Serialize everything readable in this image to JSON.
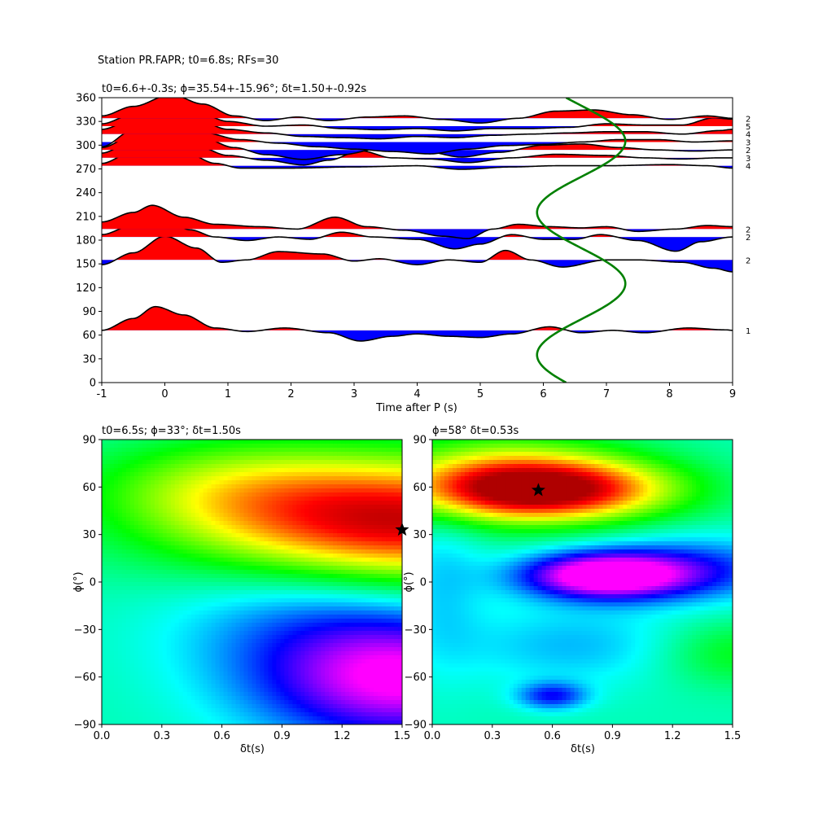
{
  "figure_title": "Station PR.FAPR; t0=6.8s; RFs=30",
  "chart_data": [
    {
      "type": "line",
      "title": "t0=6.6+-0.3s; ϕ=35.54+-15.96°; δt=1.50+-0.92s",
      "xlabel": "Time after P (s)",
      "ylabel": "",
      "xlim": [
        -1,
        9
      ],
      "ylim": [
        0,
        360
      ],
      "xticks": [
        "-1",
        "0",
        "1",
        "2",
        "3",
        "4",
        "5",
        "6",
        "7",
        "8",
        "9"
      ],
      "yticks": [
        "0",
        "30",
        "60",
        "90",
        "120",
        "150",
        "180",
        "210",
        "240",
        "270",
        "300",
        "330",
        "360"
      ],
      "grid": false,
      "trace_scale_deg": 30,
      "traces": [
        {
          "baz": 66,
          "count": "1",
          "wave": [
            [
              -1,
              0
            ],
            [
              -0.5,
              0.5
            ],
            [
              -0.15,
              1.0
            ],
            [
              0.3,
              0.65
            ],
            [
              0.8,
              0.1
            ],
            [
              1.3,
              -0.05
            ],
            [
              1.9,
              0.1
            ],
            [
              2.6,
              -0.1
            ],
            [
              3.1,
              -0.45
            ],
            [
              3.6,
              -0.25
            ],
            [
              4.0,
              -0.15
            ],
            [
              4.5,
              -0.25
            ],
            [
              5.0,
              -0.3
            ],
            [
              5.5,
              -0.15
            ],
            [
              6.1,
              0.15
            ],
            [
              6.6,
              -0.1
            ],
            [
              7.1,
              0.0
            ],
            [
              7.6,
              -0.1
            ],
            [
              8.3,
              0.1
            ],
            [
              8.9,
              0.02
            ],
            [
              9,
              0
            ]
          ]
        },
        {
          "baz": 155,
          "count": "2",
          "wave": [
            [
              -1,
              -0.2
            ],
            [
              -0.5,
              0.3
            ],
            [
              0.0,
              1.0
            ],
            [
              0.5,
              0.5
            ],
            [
              0.9,
              -0.1
            ],
            [
              1.3,
              0.0
            ],
            [
              1.8,
              0.35
            ],
            [
              2.5,
              0.25
            ],
            [
              3.0,
              -0.05
            ],
            [
              3.4,
              0.05
            ],
            [
              4.0,
              -0.2
            ],
            [
              4.5,
              0.0
            ],
            [
              5.0,
              -0.1
            ],
            [
              5.4,
              0.4
            ],
            [
              5.8,
              0.0
            ],
            [
              6.3,
              -0.3
            ],
            [
              7.0,
              0.0
            ],
            [
              7.5,
              0.0
            ],
            [
              8.2,
              -0.1
            ],
            [
              8.7,
              -0.35
            ],
            [
              9,
              -0.5
            ]
          ]
        },
        {
          "baz": 184,
          "count": "2",
          "wave": [
            [
              -1,
              0.1
            ],
            [
              -0.5,
              0.5
            ],
            [
              -0.1,
              1.0
            ],
            [
              0.4,
              0.3
            ],
            [
              0.8,
              0.0
            ],
            [
              1.3,
              -0.15
            ],
            [
              1.8,
              0.0
            ],
            [
              2.3,
              -0.1
            ],
            [
              2.8,
              0.2
            ],
            [
              3.3,
              0.0
            ],
            [
              4.0,
              -0.1
            ],
            [
              4.6,
              -0.5
            ],
            [
              5.0,
              -0.3
            ],
            [
              5.5,
              0.1
            ],
            [
              6.0,
              -0.1
            ],
            [
              6.5,
              -0.1
            ],
            [
              6.9,
              0.1
            ],
            [
              7.5,
              -0.15
            ],
            [
              8.1,
              -0.6
            ],
            [
              8.5,
              -0.2
            ],
            [
              9,
              0
            ]
          ]
        },
        {
          "baz": 194,
          "count": "2",
          "wave": [
            [
              -1,
              0.3
            ],
            [
              -0.5,
              0.7
            ],
            [
              -0.2,
              1.0
            ],
            [
              0.3,
              0.5
            ],
            [
              0.8,
              0.2
            ],
            [
              1.5,
              0.1
            ],
            [
              2.1,
              0.0
            ],
            [
              2.7,
              0.5
            ],
            [
              3.2,
              0.1
            ],
            [
              3.8,
              -0.05
            ],
            [
              4.4,
              -0.3
            ],
            [
              4.8,
              -0.4
            ],
            [
              5.2,
              0.0
            ],
            [
              5.6,
              0.2
            ],
            [
              6.1,
              0.1
            ],
            [
              6.6,
              0.05
            ],
            [
              7.0,
              0.1
            ],
            [
              7.5,
              -0.1
            ],
            [
              8.1,
              0.0
            ],
            [
              8.6,
              0.15
            ],
            [
              9,
              0.1
            ]
          ]
        },
        {
          "baz": 274,
          "count": "4",
          "wave": [
            [
              -1,
              0.1
            ],
            [
              -0.5,
              0.6
            ],
            [
              -0.2,
              1.0
            ],
            [
              0.3,
              0.6
            ],
            [
              0.8,
              0.1
            ],
            [
              1.2,
              -0.1
            ],
            [
              2.0,
              -0.1
            ],
            [
              3.0,
              -0.05
            ],
            [
              4.0,
              0.0
            ],
            [
              4.7,
              -0.15
            ],
            [
              5.5,
              -0.05
            ],
            [
              6.2,
              0.0
            ],
            [
              7.0,
              0.0
            ],
            [
              8.0,
              0.05
            ],
            [
              8.6,
              0.0
            ],
            [
              9,
              -0.1
            ]
          ]
        },
        {
          "baz": 284,
          "count": "3",
          "wave": [
            [
              -1,
              0.2
            ],
            [
              -0.5,
              0.7
            ],
            [
              0.0,
              1.0
            ],
            [
              0.5,
              0.5
            ],
            [
              1.0,
              0.1
            ],
            [
              1.6,
              -0.1
            ],
            [
              2.2,
              -0.3
            ],
            [
              2.6,
              -0.1
            ],
            [
              3.1,
              0.3
            ],
            [
              3.6,
              0.0
            ],
            [
              4.2,
              -0.05
            ],
            [
              4.8,
              -0.2
            ],
            [
              5.5,
              0.0
            ],
            [
              6.2,
              0.15
            ],
            [
              7.0,
              0.1
            ],
            [
              7.6,
              0.0
            ],
            [
              8.2,
              -0.05
            ],
            [
              8.8,
              0.0
            ],
            [
              9,
              0.0
            ]
          ]
        },
        {
          "baz": 294,
          "count": "2",
          "wave": [
            [
              -1,
              0.1
            ],
            [
              -0.5,
              0.6
            ],
            [
              0.1,
              1.0
            ],
            [
              0.6,
              0.5
            ],
            [
              1.1,
              0.1
            ],
            [
              1.6,
              -0.2
            ],
            [
              2.2,
              -0.4
            ],
            [
              2.8,
              -0.2
            ],
            [
              3.5,
              0.1
            ],
            [
              4.1,
              -0.05
            ],
            [
              4.7,
              -0.3
            ],
            [
              5.3,
              -0.1
            ],
            [
              6.0,
              0.2
            ],
            [
              6.6,
              0.25
            ],
            [
              7.2,
              0.1
            ],
            [
              7.8,
              0.0
            ],
            [
              8.4,
              -0.05
            ],
            [
              9,
              0.0
            ]
          ]
        },
        {
          "baz": 304,
          "count": "3",
          "wave": [
            [
              -1,
              -0.2
            ],
            [
              -0.5,
              0.5
            ],
            [
              0.1,
              1.0
            ],
            [
              0.6,
              0.4
            ],
            [
              1.2,
              0.1
            ],
            [
              1.8,
              -0.05
            ],
            [
              2.4,
              -0.2
            ],
            [
              3.0,
              -0.3
            ],
            [
              3.6,
              -0.4
            ],
            [
              4.2,
              -0.5
            ],
            [
              4.8,
              -0.3
            ],
            [
              5.4,
              -0.15
            ],
            [
              6.0,
              -0.1
            ],
            [
              6.6,
              0.0
            ],
            [
              7.2,
              0.1
            ],
            [
              7.8,
              0.1
            ],
            [
              8.4,
              0.0
            ],
            [
              9,
              0.05
            ]
          ]
        },
        {
          "baz": 314,
          "count": "4",
          "wave": [
            [
              -1,
              0.2
            ],
            [
              -0.5,
              0.6
            ],
            [
              0.0,
              1.0
            ],
            [
              0.5,
              0.6
            ],
            [
              1.0,
              0.2
            ],
            [
              1.6,
              0.05
            ],
            [
              2.2,
              -0.1
            ],
            [
              2.8,
              -0.15
            ],
            [
              3.4,
              -0.2
            ],
            [
              4.0,
              -0.1
            ],
            [
              4.6,
              -0.15
            ],
            [
              5.2,
              -0.05
            ],
            [
              5.8,
              0.0
            ],
            [
              6.4,
              0.05
            ],
            [
              7.0,
              0.1
            ],
            [
              7.6,
              0.1
            ],
            [
              8.2,
              0.0
            ],
            [
              8.8,
              0.15
            ],
            [
              9,
              0.2
            ]
          ]
        },
        {
          "baz": 324,
          "count": "5",
          "wave": [
            [
              -1,
              0.1
            ],
            [
              -0.5,
              0.5
            ],
            [
              0.0,
              1.0
            ],
            [
              0.5,
              0.6
            ],
            [
              1.0,
              0.2
            ],
            [
              1.6,
              0.0
            ],
            [
              2.2,
              0.05
            ],
            [
              2.8,
              -0.1
            ],
            [
              3.4,
              -0.15
            ],
            [
              4.0,
              -0.1
            ],
            [
              4.6,
              -0.2
            ],
            [
              5.2,
              -0.1
            ],
            [
              5.8,
              -0.1
            ],
            [
              6.4,
              -0.05
            ],
            [
              7.0,
              0.1
            ],
            [
              7.6,
              0.05
            ],
            [
              8.2,
              0.05
            ],
            [
              8.7,
              0.35
            ],
            [
              9,
              0.3
            ]
          ]
        },
        {
          "baz": 334,
          "count": "2",
          "wave": [
            [
              -1,
              0.1
            ],
            [
              -0.5,
              0.5
            ],
            [
              0.1,
              1.0
            ],
            [
              0.6,
              0.6
            ],
            [
              1.1,
              0.1
            ],
            [
              1.6,
              -0.1
            ],
            [
              2.1,
              0.05
            ],
            [
              2.6,
              -0.1
            ],
            [
              3.2,
              0.05
            ],
            [
              3.8,
              0.1
            ],
            [
              4.4,
              -0.05
            ],
            [
              5.0,
              -0.2
            ],
            [
              5.6,
              0.0
            ],
            [
              6.2,
              0.3
            ],
            [
              6.8,
              0.35
            ],
            [
              7.4,
              0.15
            ],
            [
              8.0,
              -0.05
            ],
            [
              8.6,
              0.1
            ],
            [
              9,
              0.0
            ]
          ]
        }
      ],
      "fill_positive_color": "#ff0000",
      "fill_negative_color": "#0000ff",
      "trace_line_color": "#000000",
      "t0_curve": {
        "color": "#008000",
        "center": 6.6,
        "amplitude": 0.7,
        "period_deg": 180,
        "phase_deg": 35
      }
    },
    {
      "type": "heatmap",
      "title": "t0=6.5s; ϕ=33°; δt=1.50s",
      "xlabel": "δt(s)",
      "ylabel": "ϕ(°)",
      "xlim": [
        0.0,
        1.5
      ],
      "ylim": [
        -90,
        90
      ],
      "xticks": [
        "0.0",
        "0.3",
        "0.6",
        "0.9",
        "1.2",
        "1.5"
      ],
      "yticks": [
        "−90",
        "−60",
        "−30",
        "0",
        "30",
        "60",
        "90"
      ],
      "colormap": "hsv-reversed",
      "best": {
        "dt": 1.5,
        "phi": 33
      },
      "marker": "star"
    },
    {
      "type": "heatmap",
      "title": "ϕ=58° δt=0.53s",
      "xlabel": "δt(s)",
      "ylabel": "ϕ(°)",
      "xlim": [
        0.0,
        1.5
      ],
      "ylim": [
        -90,
        90
      ],
      "xticks": [
        "0.0",
        "0.3",
        "0.6",
        "0.9",
        "1.2",
        "1.5"
      ],
      "yticks": [
        "−90",
        "−60",
        "−30",
        "0",
        "30",
        "60",
        "90"
      ],
      "colormap": "hsv-reversed",
      "best": {
        "dt": 0.53,
        "phi": 58
      },
      "marker": "star"
    }
  ]
}
